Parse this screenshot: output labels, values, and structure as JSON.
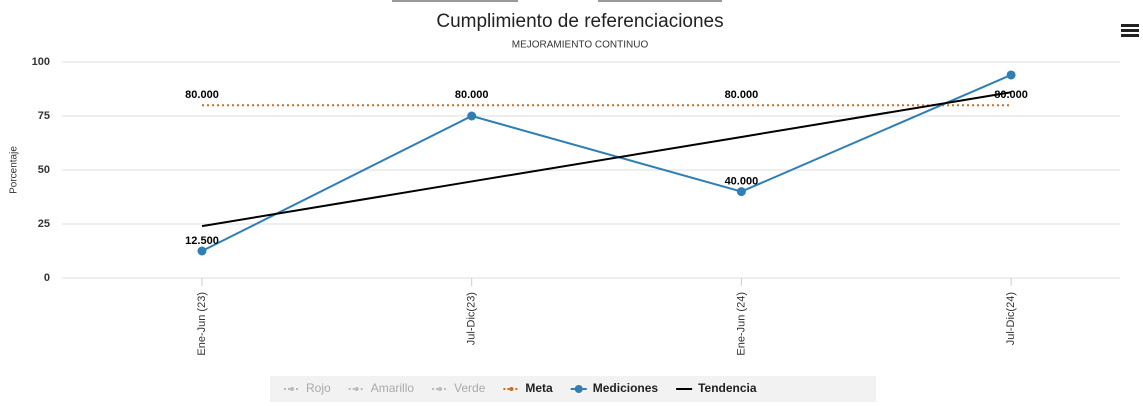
{
  "chart_data": {
    "type": "line",
    "title": "Cumplimiento de referenciaciones",
    "subtitle": "MEJORAMIENTO CONTINUO",
    "y_label": "Porcentaje",
    "categories": [
      "Ene-Jun (23)",
      "Jul-Dic(23)",
      "Ene-Jun (24)",
      "Jul-Dic(24)"
    ],
    "ylim": [
      0,
      100
    ],
    "yticks": [
      0,
      25,
      50,
      75,
      100
    ],
    "grid": true,
    "legend": "bottom",
    "series": [
      {
        "name": "Rojo",
        "color": "#aaaaaa",
        "visible": false,
        "values": [
          null,
          null,
          null,
          null
        ]
      },
      {
        "name": "Amarillo",
        "color": "#aaaaaa",
        "visible": false,
        "values": [
          null,
          null,
          null,
          null
        ]
      },
      {
        "name": "Verde",
        "color": "#aaaaaa",
        "visible": false,
        "values": [
          null,
          null,
          null,
          null
        ]
      },
      {
        "name": "Meta",
        "color": "#c8711f",
        "visible": true,
        "dashed": true,
        "markers": false,
        "values": [
          80,
          80,
          80,
          80
        ],
        "value_labels": [
          "80.000",
          "80.000",
          "80.000",
          "80.000"
        ]
      },
      {
        "name": "Mediciones",
        "color": "#2f7fb5",
        "visible": true,
        "dashed": false,
        "markers": true,
        "values": [
          12.5,
          75,
          40,
          94
        ],
        "value_labels": [
          "12.500",
          null,
          "40.000",
          null
        ]
      },
      {
        "name": "Tendencia",
        "color": "#000000",
        "visible": true,
        "dashed": false,
        "markers": false,
        "values": [
          24,
          44.7,
          65.3,
          86
        ]
      }
    ]
  }
}
